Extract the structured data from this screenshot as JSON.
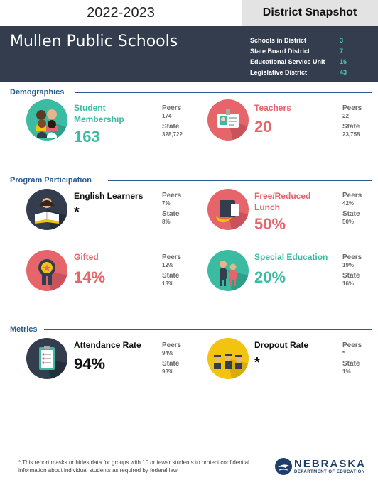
{
  "header": {
    "school_year": "2022-2023",
    "snapshot_label": "District Snapshot",
    "district_name": "Mullen Public Schools",
    "info": [
      {
        "label": "Schools in District",
        "value": "3"
      },
      {
        "label": "State Board District",
        "value": "7"
      },
      {
        "label": "Educational Service Unit",
        "value": "16"
      },
      {
        "label": "Legislative District",
        "value": "43"
      }
    ]
  },
  "comparison_labels": {
    "peers": "Peers",
    "state": "State"
  },
  "demographics": {
    "title": "Demographics",
    "student_membership": {
      "label_line1": "Student",
      "label_line2": "Membership",
      "value": "163",
      "peers": "174",
      "state": "328,722",
      "icon": "students-icon"
    },
    "teachers": {
      "label": "Teachers",
      "value": "20",
      "peers": "22",
      "state": "23,758",
      "icon": "id-badge-icon"
    }
  },
  "program_participation": {
    "title": "Program Participation",
    "english_learners": {
      "label": "English Learners",
      "value": "*",
      "peers": "7%",
      "state": "8%",
      "icon": "reader-book-icon"
    },
    "free_reduced_lunch": {
      "label_line1": "Free/Reduced",
      "label_line2": "Lunch",
      "value": "50%",
      "peers": "42%",
      "state": "50%",
      "icon": "lunch-icon"
    },
    "gifted": {
      "label": "Gifted",
      "value": "14%",
      "peers": "12%",
      "state": "13%",
      "icon": "award-ribbon-icon"
    },
    "special_education": {
      "label": "Special Education",
      "value": "20%",
      "peers": "19%",
      "state": "16%",
      "icon": "people-icon"
    }
  },
  "metrics": {
    "title": "Metrics",
    "attendance_rate": {
      "label": "Attendance Rate",
      "value": "94%",
      "peers": "94%",
      "state": "93%",
      "icon": "clipboard-checklist-icon"
    },
    "dropout_rate": {
      "label": "Dropout Rate",
      "value": "*",
      "peers": "*",
      "state": "1%",
      "icon": "graduates-icon"
    }
  },
  "footer": {
    "footnote": "* This report masks or hides data for groups with 10 or fewer students to protect confidential information about individual students as required by federal law.",
    "logo_name": "NEBRASKA",
    "logo_dept": "DEPARTMENT OF EDUCATION"
  },
  "colors": {
    "header_bg": "#333d4d",
    "teal": "#3bbca2",
    "coral": "#e5656a",
    "section_blue": "#2a5a92",
    "yellow": "#f2c40f"
  }
}
